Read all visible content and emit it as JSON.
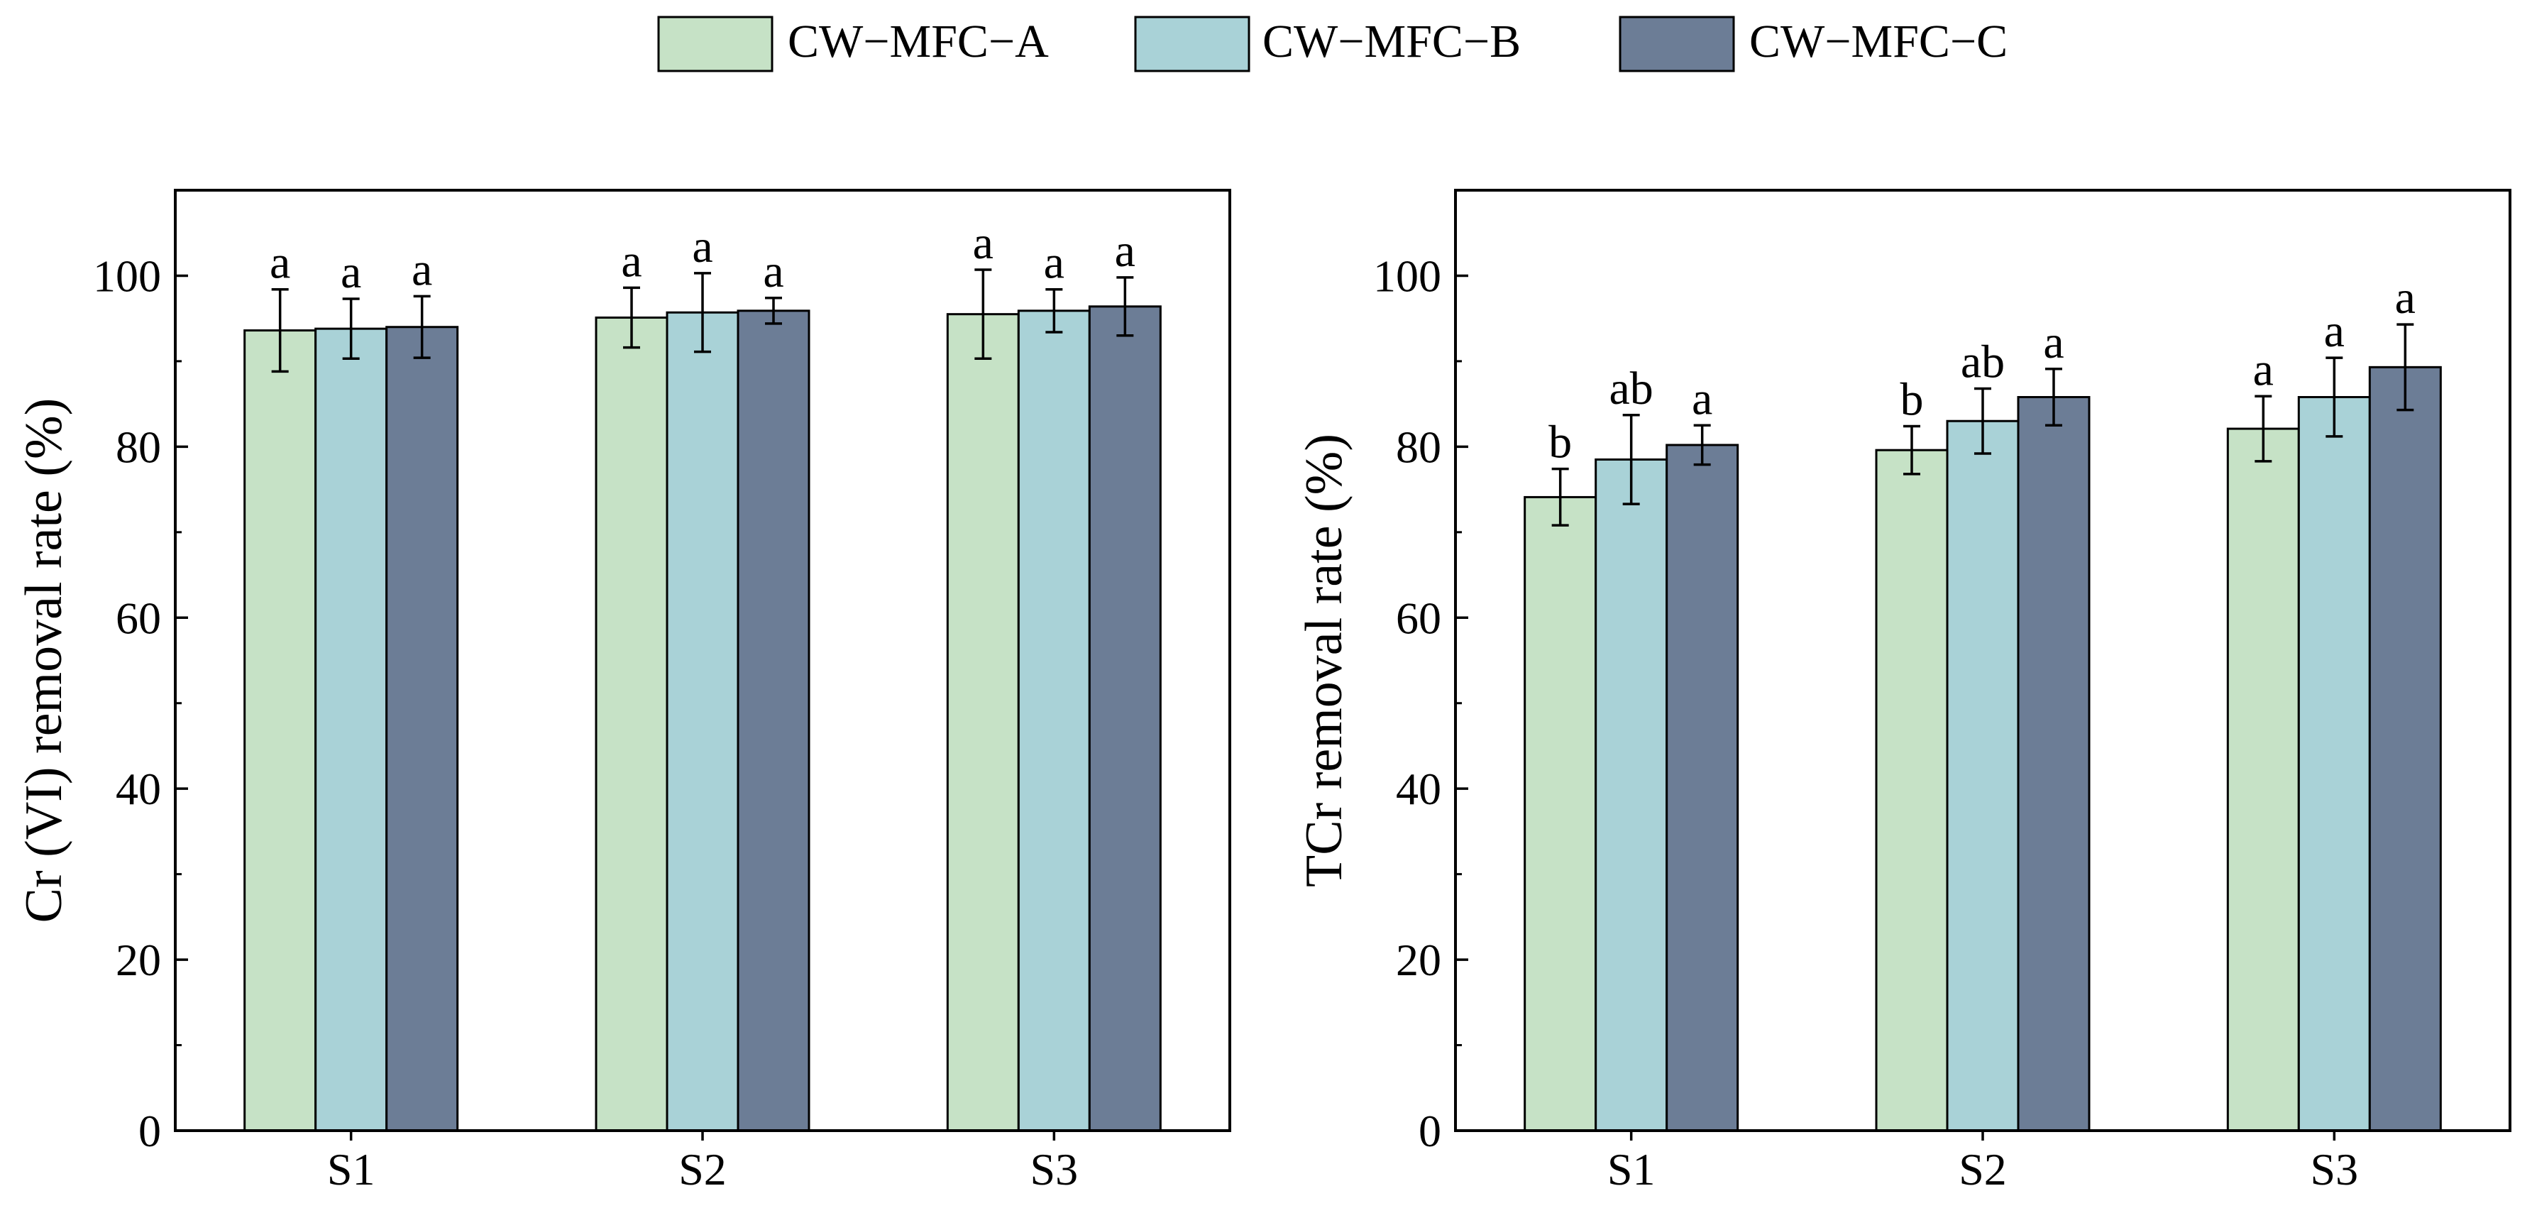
{
  "legend": {
    "entries": [
      {
        "name": "CW−MFC−A",
        "color": "#c6e2c6"
      },
      {
        "name": "CW−MFC−B",
        "color": "#a9d2d7"
      },
      {
        "name": "CW−MFC−C",
        "color": "#6c7d96"
      }
    ]
  },
  "chart_data": [
    {
      "type": "bar",
      "ylabel": "Cr (VI) removal rate (%)",
      "xlabel": "",
      "ylim": [
        0,
        110
      ],
      "yticks": [
        0,
        20,
        40,
        60,
        80,
        100
      ],
      "categories": [
        "S1",
        "S2",
        "S3"
      ],
      "series": [
        {
          "name": "CW−MFC−A",
          "values": [
            93.6,
            95.1,
            95.5
          ],
          "errors": [
            4.8,
            3.5,
            5.2
          ],
          "labels": [
            "a",
            "a",
            "a"
          ]
        },
        {
          "name": "CW−MFC−B",
          "values": [
            93.8,
            95.7,
            95.9
          ],
          "errors": [
            3.5,
            4.6,
            2.5
          ],
          "labels": [
            "a",
            "a",
            "a"
          ]
        },
        {
          "name": "CW−MFC−C",
          "values": [
            94.0,
            95.9,
            96.4
          ],
          "errors": [
            3.6,
            1.5,
            3.4
          ],
          "labels": [
            "a",
            "a",
            "a"
          ]
        }
      ]
    },
    {
      "type": "bar",
      "ylabel": "TCr removal rate (%)",
      "xlabel": "",
      "ylim": [
        0,
        110
      ],
      "yticks": [
        0,
        20,
        40,
        60,
        80,
        100
      ],
      "categories": [
        "S1",
        "S2",
        "S3"
      ],
      "series": [
        {
          "name": "CW−MFC−A",
          "values": [
            74.1,
            79.6,
            82.1
          ],
          "errors": [
            3.3,
            2.8,
            3.8
          ],
          "labels": [
            "b",
            "b",
            "a"
          ]
        },
        {
          "name": "CW−MFC−B",
          "values": [
            78.5,
            83.0,
            85.8
          ],
          "errors": [
            5.2,
            3.8,
            4.6
          ],
          "labels": [
            "ab",
            "ab",
            "a"
          ]
        },
        {
          "name": "CW−MFC−C",
          "values": [
            80.2,
            85.8,
            89.3
          ],
          "errors": [
            2.3,
            3.3,
            5.0
          ],
          "labels": [
            "a",
            "a",
            "a"
          ]
        }
      ]
    }
  ]
}
